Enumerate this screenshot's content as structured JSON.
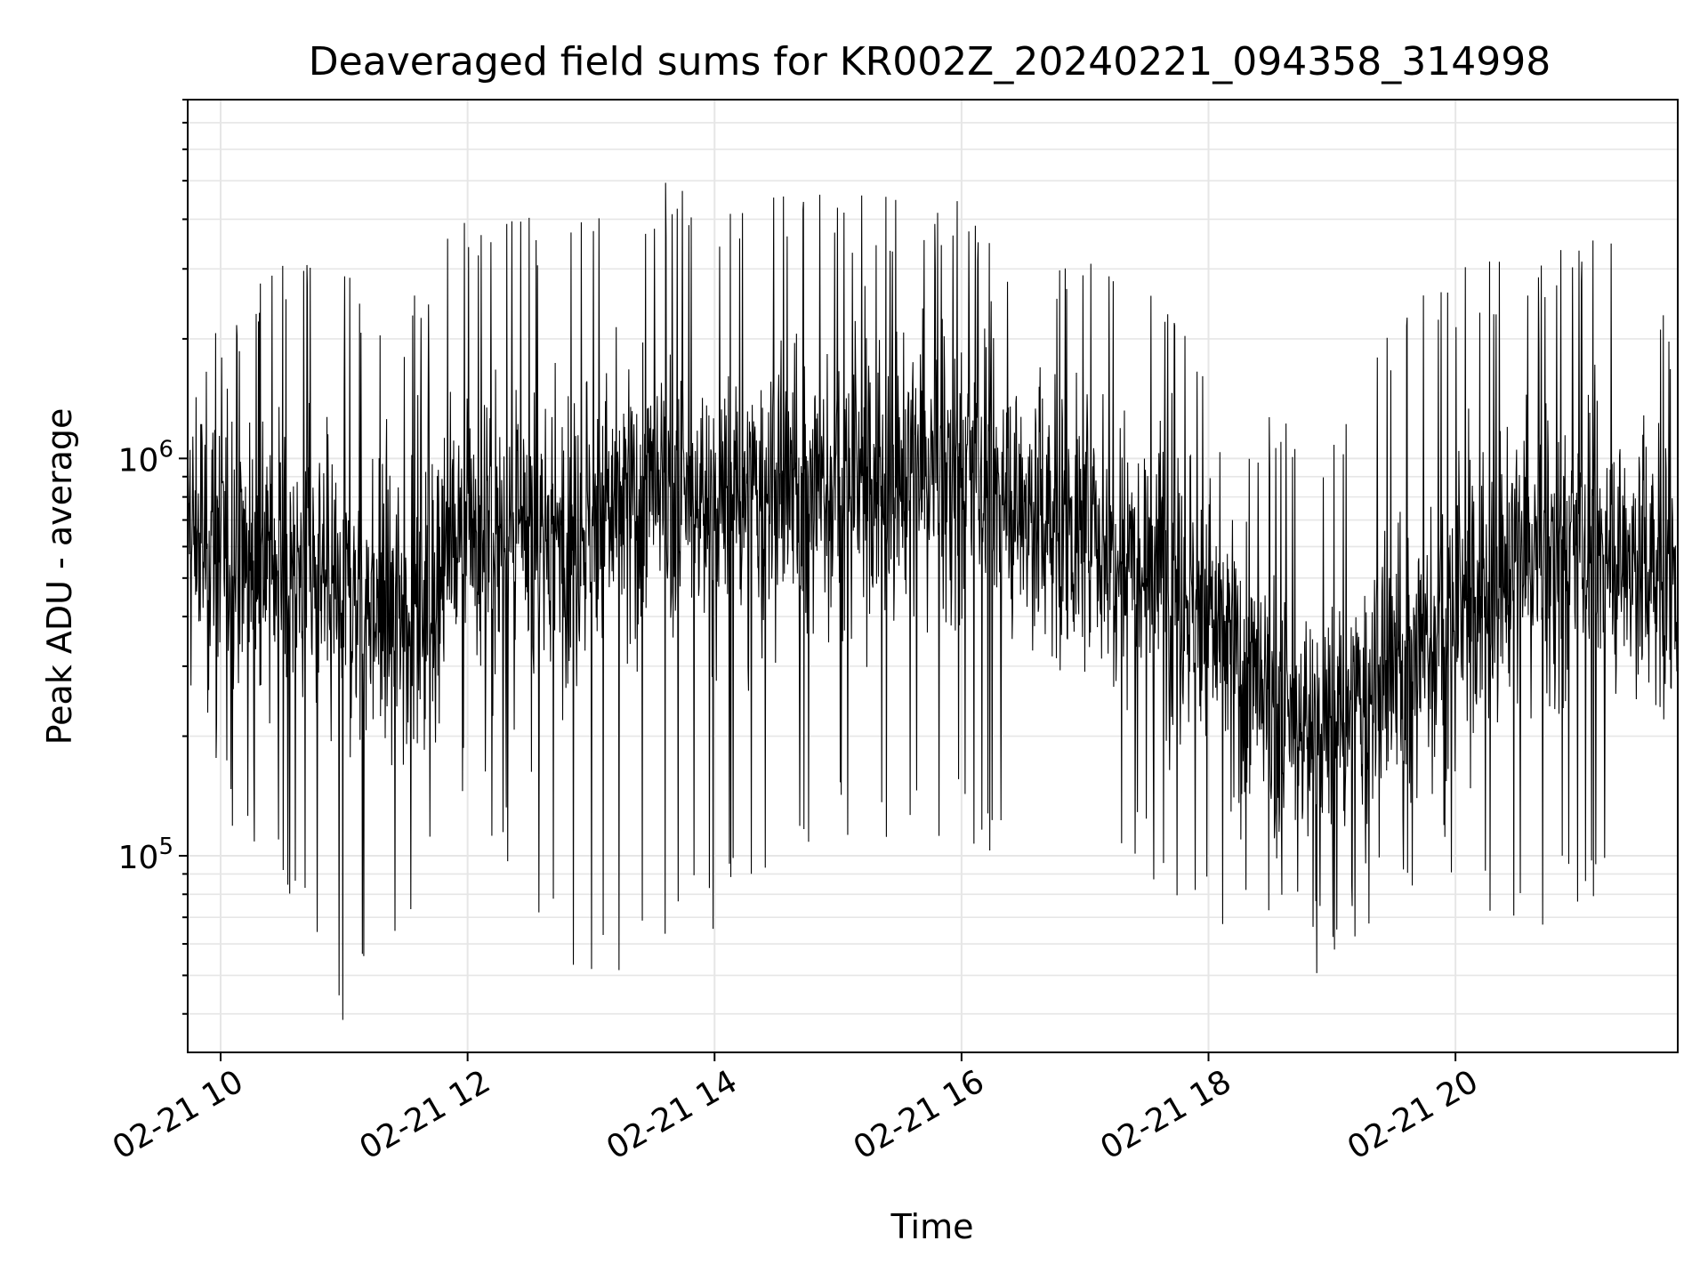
{
  "chart_data": {
    "type": "line",
    "title": "Deaveraged field sums for KR002Z_20240221_094358_314998",
    "xlabel": "Time",
    "ylabel": "Peak ADU - average",
    "yscale": "log",
    "grid": true,
    "line_color": "#000000",
    "grid_color": "#e6e6e6",
    "x_range": [
      "2024-02-21 09:44",
      "2024-02-21 21:48"
    ],
    "ylim": [
      32000,
      8000000
    ],
    "x_ticks": [
      {
        "time": "2024-02-21 10:00",
        "label": "02-21 10"
      },
      {
        "time": "2024-02-21 12:00",
        "label": "02-21 12"
      },
      {
        "time": "2024-02-21 14:00",
        "label": "02-21 14"
      },
      {
        "time": "2024-02-21 16:00",
        "label": "02-21 16"
      },
      {
        "time": "2024-02-21 18:00",
        "label": "02-21 18"
      },
      {
        "time": "2024-02-21 20:00",
        "label": "02-21 20"
      }
    ],
    "y_ticks": [
      {
        "value": 100000,
        "base": "10",
        "exp": "5"
      },
      {
        "value": 1000000,
        "base": "10",
        "exp": "6"
      }
    ],
    "series": [
      {
        "x": [
          "2024-02-21 09:44",
          "2024-02-21 10:00",
          "2024-02-21 10:30",
          "2024-02-21 11:00",
          "2024-02-21 11:30",
          "2024-02-21 12:00",
          "2024-02-21 12:30",
          "2024-02-21 13:00",
          "2024-02-21 13:30",
          "2024-02-21 14:00",
          "2024-02-21 14:30",
          "2024-02-21 15:00",
          "2024-02-21 15:30",
          "2024-02-21 16:00",
          "2024-02-21 16:30",
          "2024-02-21 17:00",
          "2024-02-21 17:30",
          "2024-02-21 18:00",
          "2024-02-21 18:30",
          "2024-02-21 19:00",
          "2024-02-21 19:30",
          "2024-02-21 20:00",
          "2024-02-21 20:30",
          "2024-02-21 21:00",
          "2024-02-21 21:30",
          "2024-02-21 21:48"
        ],
        "y_typical": [
          650000,
          600000,
          550000,
          450000,
          420000,
          650000,
          600000,
          700000,
          800000,
          750000,
          800000,
          850000,
          900000,
          950000,
          750000,
          650000,
          600000,
          400000,
          220000,
          200000,
          280000,
          400000,
          550000,
          600000,
          550000,
          500000
        ],
        "y_max": [
          1700000,
          2500000,
          3200000,
          3000000,
          2500000,
          4400000,
          4300000,
          3900000,
          5200000,
          4600000,
          4900000,
          4600000,
          4700000,
          4900000,
          3000000,
          3700000,
          3400000,
          1500000,
          1300000,
          1200000,
          2300000,
          3000000,
          3400000,
          3800000,
          4700000,
          1800000
        ],
        "y_min": [
          260000,
          130000,
          80000,
          35000,
          65000,
          140000,
          75000,
          44000,
          60000,
          65000,
          85000,
          110000,
          110000,
          110000,
          85000,
          110000,
          90000,
          65000,
          70000,
          45000,
          70000,
          90000,
          60000,
          75000,
          75000,
          180000
        ]
      }
    ]
  }
}
